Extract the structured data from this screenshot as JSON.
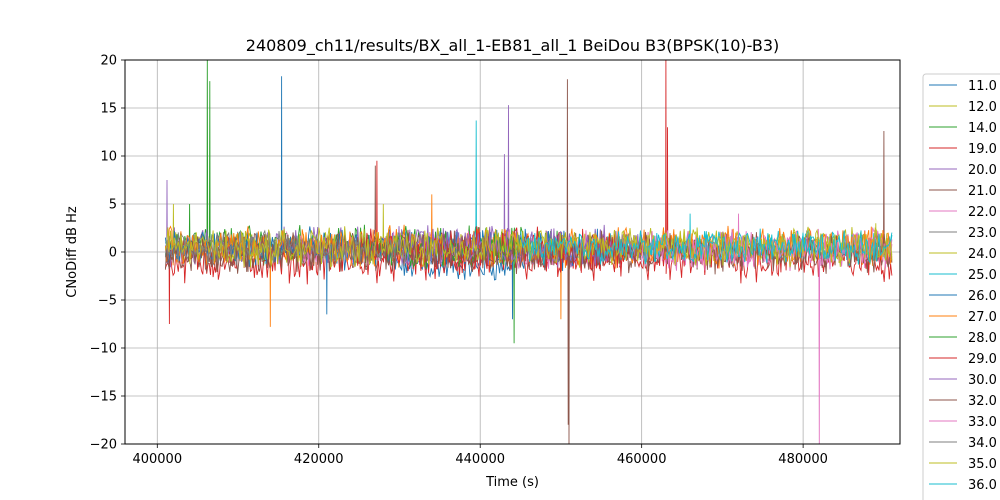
{
  "chart_data": {
    "type": "line",
    "title": "240809_ch11/results/BX_all_1-EB81_all_1 BeiDou B3(BPSK(10)-B3)",
    "xlabel": "Time (s)",
    "ylabel": "CNoDiff dB Hz",
    "xlim": [
      396000,
      492000
    ],
    "ylim": [
      -20,
      20
    ],
    "x_ticks": [
      400000,
      420000,
      440000,
      460000,
      480000
    ],
    "y_ticks": [
      -20,
      -15,
      -10,
      -5,
      0,
      5,
      10,
      15,
      20
    ],
    "grid": true,
    "legend_position": "right, outside plot area (clipped at bottom)",
    "series": [
      {
        "name": "11.0",
        "color": "#1f77b4",
        "x_range": [
          429000,
          444000
        ],
        "level": -1.5,
        "amplitude": 1.2,
        "spikes": []
      },
      {
        "name": "12.0",
        "color": "#bcbd22",
        "x_range": [
          401000,
          491000
        ],
        "level": 0.5,
        "amplitude": 1.2,
        "spikes": [
          [
            402000,
            5
          ],
          [
            428000,
            5
          ]
        ]
      },
      {
        "name": "14.0",
        "color": "#2ca02c",
        "x_range": [
          401000,
          450000
        ],
        "level": 0.8,
        "amplitude": 1.5,
        "spikes": [
          [
            406200,
            20
          ],
          [
            406500,
            17.8
          ],
          [
            404000,
            5
          ]
        ]
      },
      {
        "name": "19.0",
        "color": "#d62728",
        "x_range": [
          401000,
          491000
        ],
        "level": -0.8,
        "amplitude": 1.8,
        "spikes": [
          [
            401500,
            -7.5
          ],
          [
            463000,
            20
          ],
          [
            463200,
            13
          ]
        ]
      },
      {
        "name": "20.0",
        "color": "#9467bd",
        "x_range": [
          401000,
          460000
        ],
        "level": 0.6,
        "amplitude": 1.6,
        "spikes": [
          [
            401200,
            7.5
          ],
          [
            443500,
            15.3
          ],
          [
            443000,
            10.2
          ]
        ]
      },
      {
        "name": "21.0",
        "color": "#8c564b",
        "x_range": [
          401000,
          491000
        ],
        "level": 0.0,
        "amplitude": 1.6,
        "spikes": [
          [
            450800,
            18
          ],
          [
            450900,
            -18
          ],
          [
            490000,
            12.6
          ],
          [
            427000,
            9
          ]
        ]
      },
      {
        "name": "22.0",
        "color": "#e377c2",
        "x_range": [
          416000,
          491000
        ],
        "level": 0.4,
        "amplitude": 1.5,
        "spikes": [
          [
            482000,
            -20
          ],
          [
            472000,
            4
          ]
        ]
      },
      {
        "name": "23.0",
        "color": "#7f7f7f",
        "x_range": [
          401000,
          421000
        ],
        "level": 1.0,
        "amplitude": 1.0,
        "spikes": []
      },
      {
        "name": "24.0",
        "color": "#bcbd22",
        "x_range": [
          440000,
          491000
        ],
        "level": 0.8,
        "amplitude": 1.3,
        "spikes": [
          [
            489000,
            3
          ]
        ]
      },
      {
        "name": "25.0",
        "color": "#17becf",
        "x_range": [
          455000,
          491000
        ],
        "level": 0.6,
        "amplitude": 1.4,
        "spikes": [
          [
            439500,
            13.7
          ],
          [
            466000,
            4
          ]
        ]
      },
      {
        "name": "26.0",
        "color": "#1f77b4",
        "x_range": [
          401000,
          455000
        ],
        "level": 0.3,
        "amplitude": 1.6,
        "spikes": [
          [
            415400,
            18.3
          ],
          [
            421000,
            -6.5
          ],
          [
            444000,
            -7
          ]
        ]
      },
      {
        "name": "27.0",
        "color": "#ff7f0e",
        "x_range": [
          401000,
          491000
        ],
        "level": 0.5,
        "amplitude": 1.6,
        "spikes": [
          [
            450000,
            -7
          ],
          [
            434000,
            6
          ],
          [
            414000,
            -7.8
          ]
        ]
      },
      {
        "name": "28.0",
        "color": "#2ca02c",
        "x_range": [
          425000,
          445000
        ],
        "level": 0.3,
        "amplitude": 1.4,
        "spikes": [
          [
            444200,
            -9.5
          ]
        ]
      },
      {
        "name": "29.0",
        "color": "#d62728",
        "x_range": [
          425000,
          461000
        ],
        "level": 0.2,
        "amplitude": 1.8,
        "spikes": [
          [
            427200,
            9.5
          ]
        ]
      },
      {
        "name": "30.0",
        "color": "#9467bd",
        "x_range": [
          430000,
          460000
        ],
        "level": 0.5,
        "amplitude": 1.7,
        "spikes": []
      },
      {
        "name": "32.0",
        "color": "#8c564b",
        "x_range": [
          401000,
          491000
        ],
        "level": 0.0,
        "amplitude": 1.5,
        "spikes": [
          [
            451000,
            -20
          ]
        ]
      },
      {
        "name": "33.0",
        "color": "#e377c2",
        "x_range": [
          460000,
          491000
        ],
        "level": 0.3,
        "amplitude": 1.6,
        "spikes": []
      },
      {
        "name": "34.0",
        "color": "#7f7f7f",
        "x_range": [
          401000,
          431000
        ],
        "level": 0.2,
        "amplitude": 1.2,
        "spikes": []
      },
      {
        "name": "35.0",
        "color": "#bcbd22",
        "x_range": [
          401000,
          491000
        ],
        "level": 0.5,
        "amplitude": 1.5,
        "spikes": []
      },
      {
        "name": "36.0",
        "color": "#17becf",
        "x_range": [
          445000,
          491000
        ],
        "level": 0.5,
        "amplitude": 1.3,
        "spikes": []
      }
    ]
  }
}
